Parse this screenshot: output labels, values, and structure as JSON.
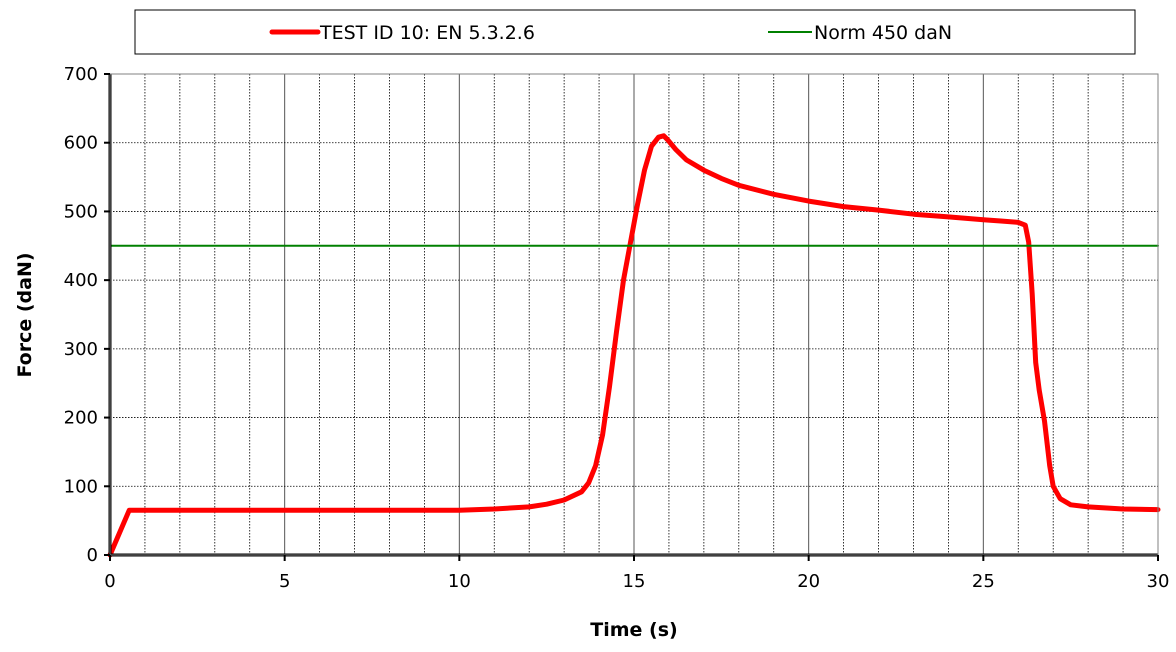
{
  "chart_data": {
    "type": "line",
    "title": "",
    "xlabel": "Time (s)",
    "ylabel": "Force (daN)",
    "xlim": [
      0,
      30
    ],
    "ylim": [
      0,
      700
    ],
    "x_ticks": [
      "0",
      "5",
      "10",
      "15",
      "20",
      "25",
      "30"
    ],
    "y_ticks": [
      "0",
      "100",
      "200",
      "300",
      "400",
      "500",
      "600",
      "700"
    ],
    "grid": "major solid, minor dotted",
    "legend_position": "top",
    "series": [
      {
        "name": "TEST ID 10: EN 5.3.2.6",
        "color": "#ff0000",
        "x": [
          0,
          0.55,
          1,
          3,
          5,
          7,
          9,
          10,
          11,
          12,
          12.5,
          13,
          13.5,
          13.7,
          13.9,
          14.1,
          14.3,
          14.5,
          14.7,
          14.9,
          15.1,
          15.3,
          15.5,
          15.7,
          15.85,
          15.95,
          16.2,
          16.5,
          17,
          17.5,
          18,
          19,
          20,
          21,
          22,
          23,
          24,
          25,
          25.5,
          26,
          26.2,
          26.3,
          26.4,
          26.5,
          26.6,
          26.75,
          26.9,
          27,
          27.2,
          27.5,
          28,
          29,
          30
        ],
        "y": [
          0,
          65,
          65,
          65,
          65,
          65,
          65,
          65,
          67,
          70,
          74,
          80,
          92,
          105,
          130,
          175,
          245,
          325,
          400,
          455,
          510,
          560,
          595,
          608,
          610,
          605,
          590,
          575,
          560,
          548,
          538,
          525,
          515,
          507,
          502,
          496,
          492,
          488,
          486,
          484,
          480,
          455,
          380,
          280,
          240,
          195,
          130,
          100,
          82,
          73,
          70,
          67,
          66
        ]
      },
      {
        "name": "Norm 450 daN",
        "color": "#008000",
        "x": [
          0,
          30
        ],
        "y": [
          450,
          450
        ]
      }
    ]
  }
}
